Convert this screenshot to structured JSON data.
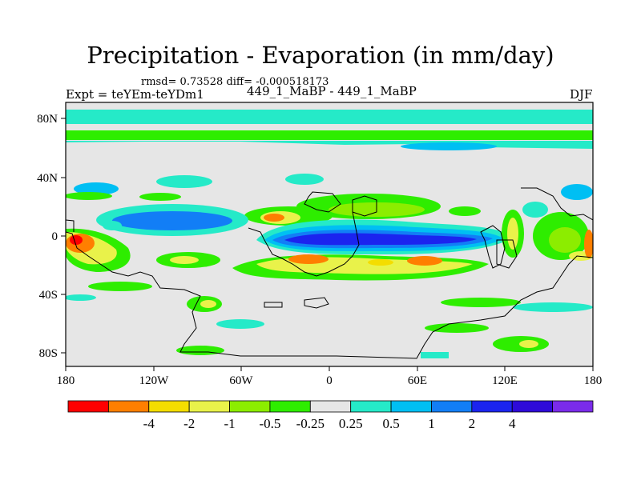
{
  "title": "Precipitation - Evaporation (in mm/day)",
  "stats": "rmsd= 0.73528 diff= -0.000518173",
  "expt": "Expt = teYEm-teYDm1",
  "case": "449_1_MaBP - 449_1_MaBP",
  "season": "DJF",
  "map": {
    "x_ticks": [
      "180",
      "120W",
      "60W",
      "0",
      "60E",
      "120E",
      "180"
    ],
    "y_ticks": [
      "80N",
      "40N",
      "0",
      "40S",
      "80S"
    ]
  },
  "colorbar": {
    "colors": [
      "#ff0000",
      "#ff7f00",
      "#f4dd00",
      "#e9f24a",
      "#8ced00",
      "#2eed00",
      "#e6e6e6",
      "#25eac8",
      "#00bff3",
      "#127ef6",
      "#1b24ef",
      "#2e0ad9",
      "#7a2bea"
    ],
    "labels": [
      "-4",
      "-2",
      "-1",
      "-0.5",
      "-0.25",
      "0.25",
      "0.5",
      "1",
      "2",
      "4"
    ]
  }
}
